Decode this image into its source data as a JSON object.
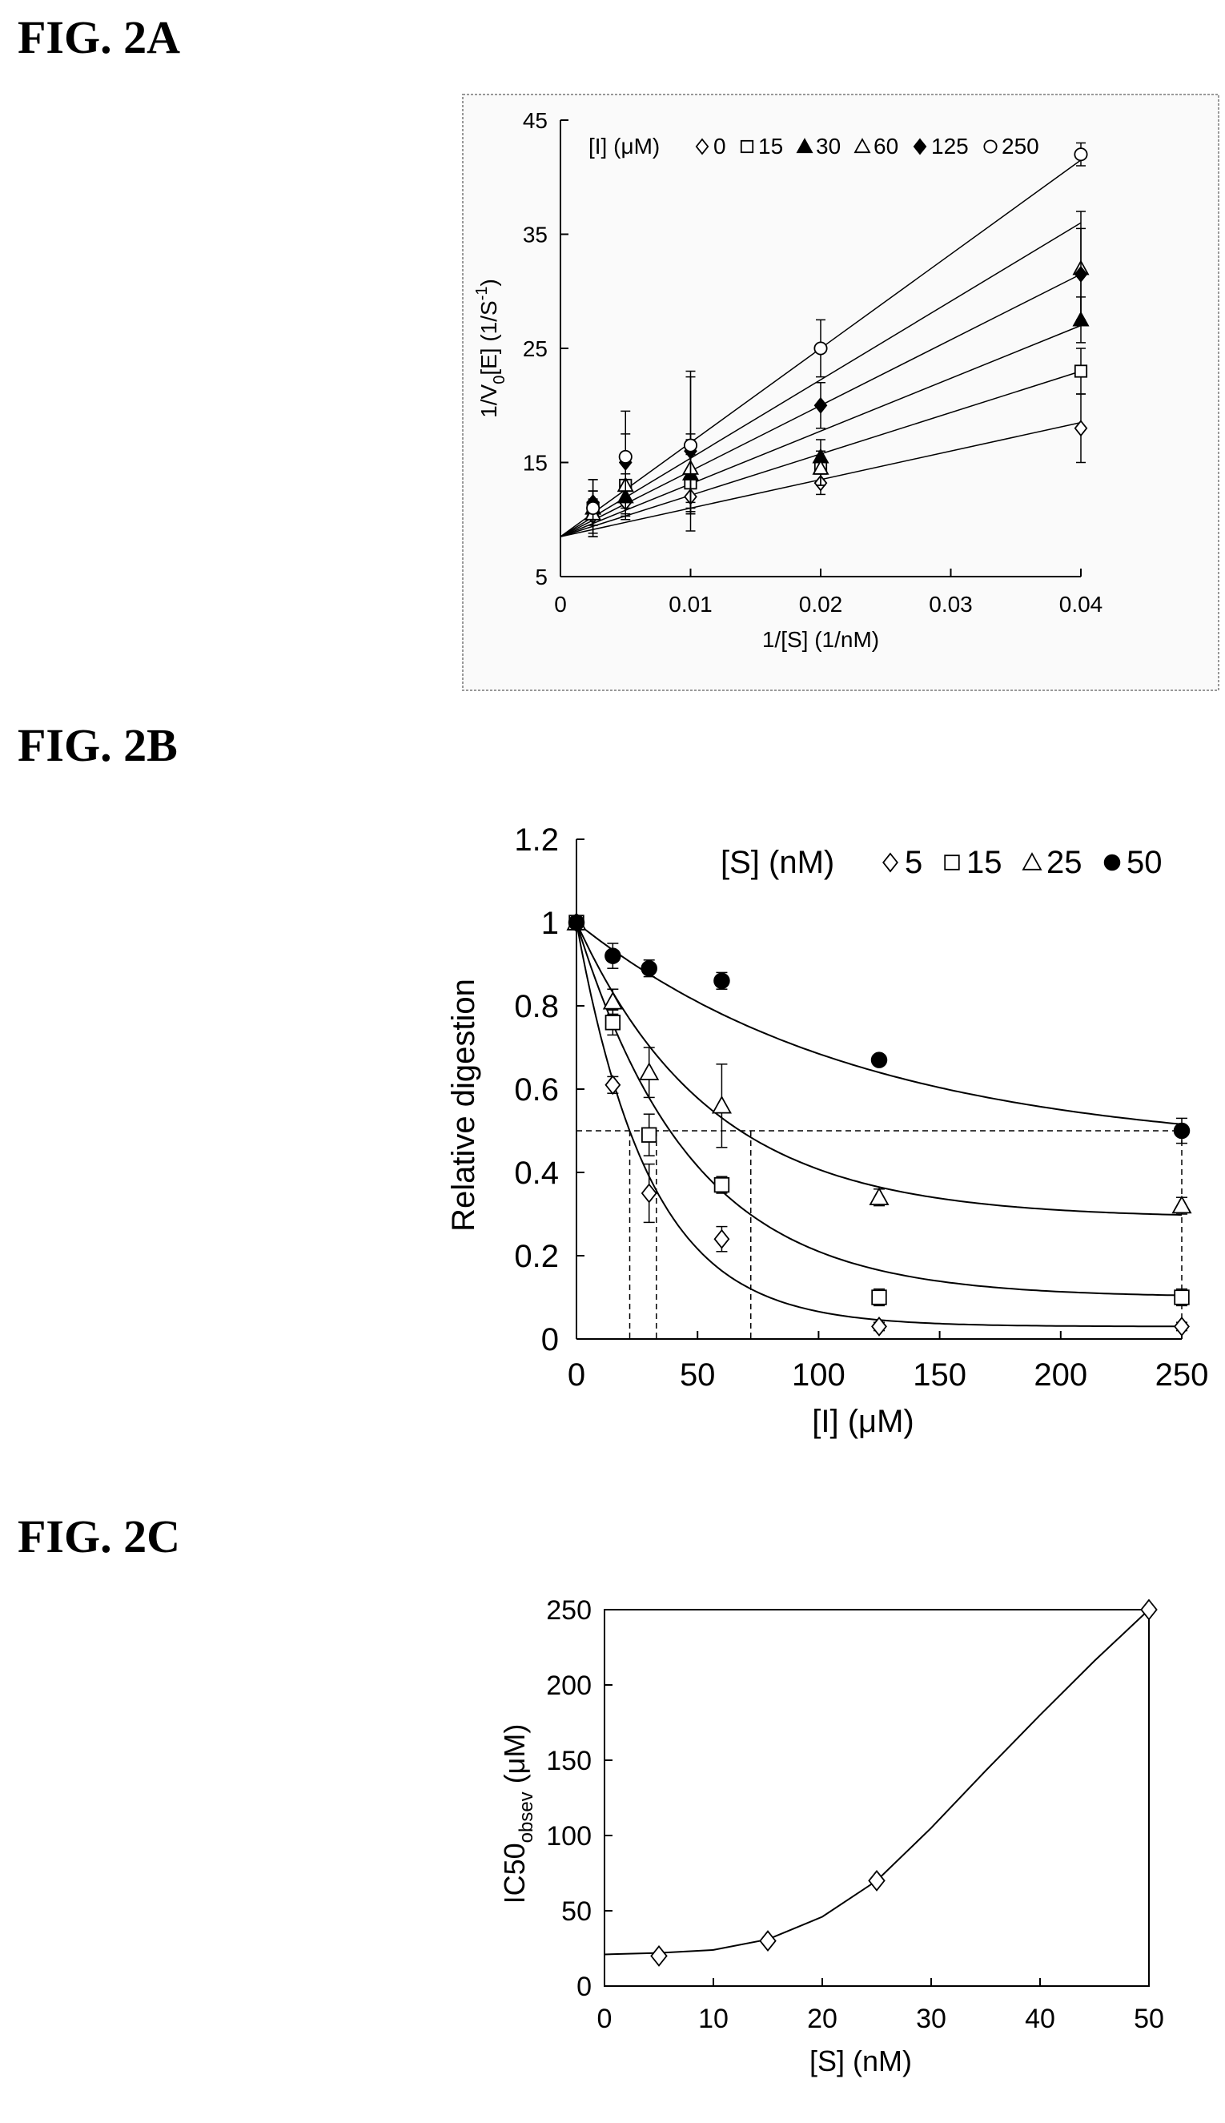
{
  "figures": {
    "a": {
      "label": "FIG. 2A"
    },
    "b": {
      "label": "FIG. 2B"
    },
    "c": {
      "label": "FIG. 2C"
    }
  },
  "chart_data": [
    {
      "id": "fig-2a",
      "type": "scatter",
      "title": "",
      "xlabel": "1/[S] (1/nM)",
      "ylabel": "1/V0[E] (1/S)",
      "ylabel_main": "1/V",
      "ylabel_sub": "0",
      "ylabel_rest": "[E] (1/S",
      "ylabel_sup": "-1",
      "ylabel_end": ")",
      "xlim": [
        0,
        0.04
      ],
      "ylim": [
        5,
        45
      ],
      "xticks": [
        0,
        0.01,
        0.02,
        0.03,
        0.04
      ],
      "xtick_labels": [
        "0",
        "0.01",
        "0.02",
        "0.03",
        "0.04"
      ],
      "yticks": [
        5,
        15,
        25,
        35,
        45
      ],
      "ytick_labels": [
        "5",
        "15",
        "25",
        "35",
        "45"
      ],
      "grid": false,
      "legend": {
        "placement": "top",
        "title": "[I] (μM)"
      },
      "x": [
        0.0025,
        0.005,
        0.01,
        0.02,
        0.04
      ],
      "series": [
        {
          "name": "0",
          "marker": "diamond-open",
          "values": [
            10.3,
            11.5,
            12.0,
            13.2,
            18.0
          ],
          "errors": [
            1.5,
            1.2,
            1.5,
            1.0,
            3.0
          ],
          "fit": [
            8.5,
            18.5
          ]
        },
        {
          "name": "15",
          "marker": "square-open",
          "values": [
            11.0,
            13.0,
            13.2,
            14.5,
            23.0
          ],
          "errors": [
            2.5,
            2.0,
            2.5,
            1.5,
            2.0
          ],
          "fit": [
            8.5,
            23.0
          ]
        },
        {
          "name": "30",
          "marker": "triangle-filled",
          "values": [
            11.0,
            12.0,
            14.0,
            15.5,
            27.5
          ],
          "errors": [
            1.5,
            2.0,
            3.0,
            1.5,
            2.0
          ],
          "fit": [
            8.5,
            27.0
          ]
        },
        {
          "name": "60",
          "marker": "triangle-open",
          "values": [
            10.5,
            13.0,
            14.5,
            14.5,
            32.0
          ],
          "errors": [
            2.0,
            2.5,
            3.0,
            1.5,
            5.0
          ],
          "fit": [
            8.5,
            31.5
          ]
        },
        {
          "name": "125",
          "marker": "diamond-filled",
          "values": [
            11.5,
            15.0,
            16.0,
            20.0,
            31.5
          ],
          "errors": [
            2.0,
            2.5,
            7.0,
            2.0,
            4.0
          ],
          "fit": [
            8.5,
            36.0
          ]
        },
        {
          "name": "250",
          "marker": "circle-open",
          "values": [
            11.0,
            15.5,
            16.5,
            25.0,
            42.0
          ],
          "errors": [
            1.5,
            4.0,
            6.0,
            2.5,
            1.0
          ],
          "fit": [
            8.5,
            41.5
          ]
        }
      ]
    },
    {
      "id": "fig-2b",
      "type": "scatter",
      "title": "",
      "xlabel": "[I] (μM)",
      "ylabel": "Relative  digestion",
      "xlim": [
        0,
        250
      ],
      "ylim": [
        0,
        1.2
      ],
      "xticks": [
        0,
        50,
        100,
        150,
        200,
        250
      ],
      "xtick_labels": [
        "0",
        "50",
        "100",
        "150",
        "200",
        "250"
      ],
      "yticks": [
        0,
        0.2,
        0.4,
        0.6,
        0.8,
        1,
        1.2
      ],
      "ytick_labels": [
        "0",
        "0.2",
        "0.4",
        "0.6",
        "0.8",
        "1",
        "1.2"
      ],
      "grid": false,
      "legend": {
        "placement": "top-right",
        "title": "[S] (nM)"
      },
      "x": [
        0,
        15,
        30,
        60,
        125,
        250
      ],
      "half_line": 0.5,
      "ic50_markers": [
        22,
        33,
        72
      ],
      "series": [
        {
          "name": "5",
          "marker": "diamond-open",
          "values": [
            1.0,
            0.61,
            0.35,
            0.24,
            0.03,
            0.03
          ],
          "errors": [
            0,
            0.02,
            0.07,
            0.03,
            0.01,
            0.01
          ],
          "fit": {
            "plateau": 0.03,
            "k": 0.033
          }
        },
        {
          "name": "15",
          "marker": "square-open",
          "values": [
            1.0,
            0.76,
            0.49,
            0.37,
            0.1,
            0.1
          ],
          "errors": [
            0,
            0.03,
            0.05,
            0.02,
            0.02,
            0.02
          ],
          "fit": {
            "plateau": 0.1,
            "k": 0.021
          }
        },
        {
          "name": "25",
          "marker": "triangle-open",
          "values": [
            1.0,
            0.81,
            0.64,
            0.56,
            0.34,
            0.32
          ],
          "errors": [
            0,
            0.03,
            0.06,
            0.1,
            0.02,
            0.02
          ],
          "fit": {
            "plateau": 0.29,
            "k": 0.018
          }
        },
        {
          "name": "50",
          "marker": "circle-filled",
          "values": [
            1.0,
            0.92,
            0.89,
            0.86,
            0.67,
            0.5
          ],
          "errors": [
            0,
            0.03,
            0.02,
            0.02,
            0.01,
            0.03
          ],
          "fit": {
            "plateau": 0.45,
            "k": 0.0085
          }
        }
      ]
    },
    {
      "id": "fig-2c",
      "type": "line",
      "title": "",
      "xlabel": "[S] (nM)",
      "ylabel": "IC50obsev (μM)",
      "ylabel_main": "IC50",
      "ylabel_sub": "obsev",
      "ylabel_rest": " (μM)",
      "xlim": [
        0,
        50
      ],
      "ylim": [
        0,
        250
      ],
      "xticks": [
        0,
        10,
        20,
        30,
        40,
        50
      ],
      "xtick_labels": [
        "0",
        "10",
        "20",
        "30",
        "40",
        "50"
      ],
      "yticks": [
        0,
        50,
        100,
        150,
        200,
        250
      ],
      "ytick_labels": [
        "0",
        "50",
        "100",
        "150",
        "200",
        "250"
      ],
      "grid": false,
      "legend": null,
      "series": [
        {
          "marker": "diamond-open",
          "x": [
            5,
            15,
            25,
            50
          ],
          "values": [
            20,
            30,
            70,
            250
          ]
        }
      ],
      "curve": {
        "x": [
          0,
          5,
          10,
          15,
          20,
          25,
          30,
          35,
          40,
          45,
          50
        ],
        "values": [
          21,
          22,
          24,
          31,
          46,
          70,
          105,
          143,
          180,
          216,
          250
        ]
      }
    }
  ]
}
